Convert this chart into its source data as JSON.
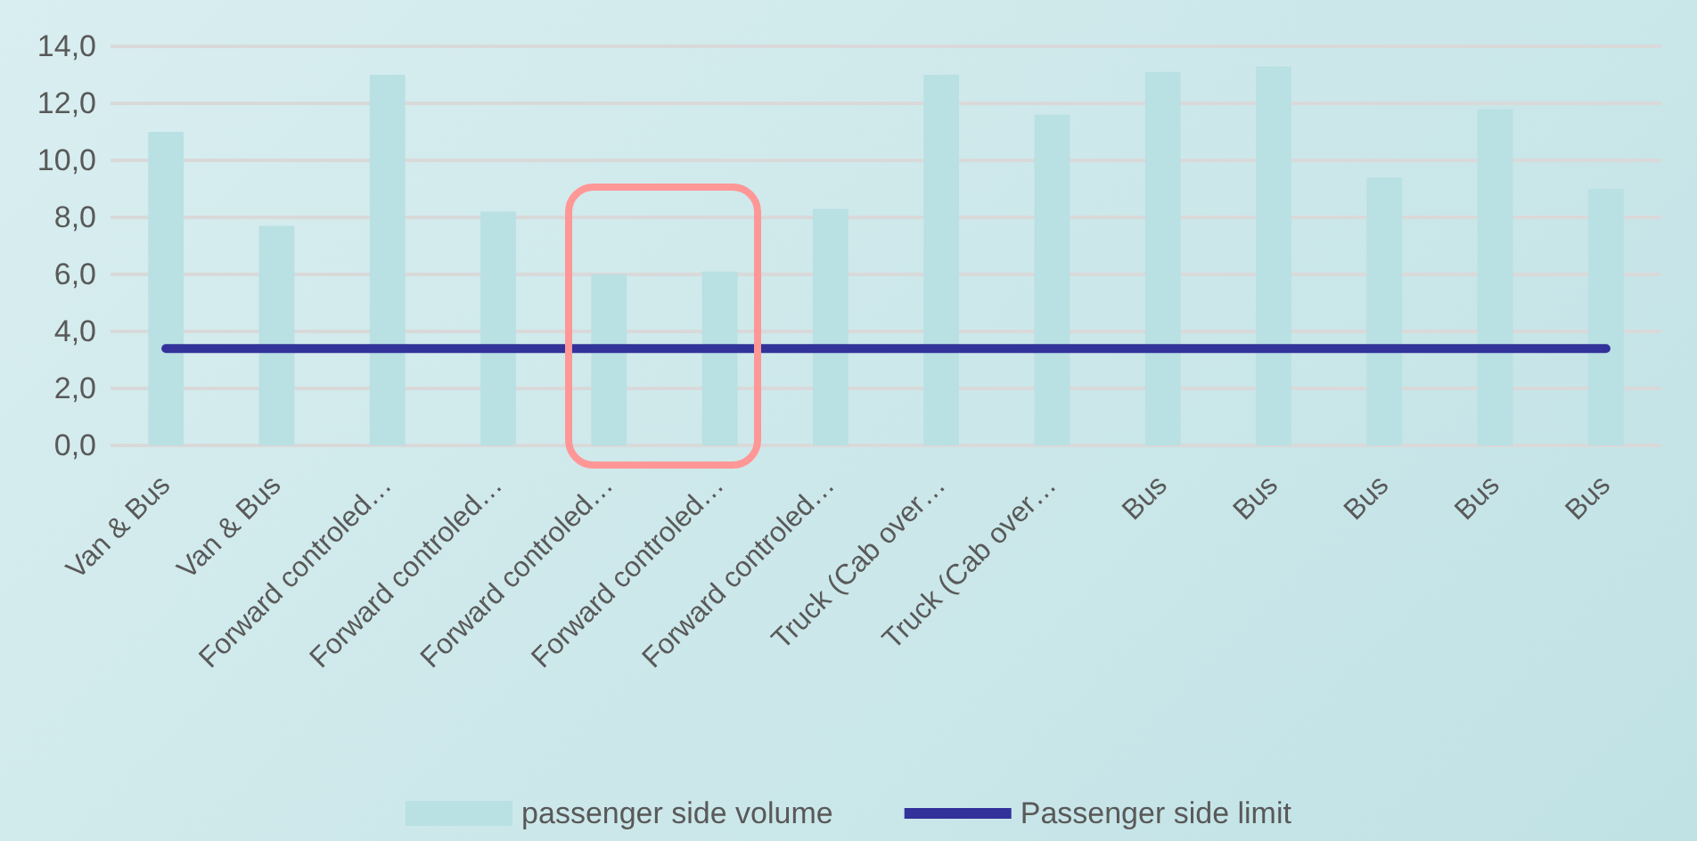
{
  "chart_data": {
    "type": "bar",
    "categories": [
      "Van & Bus",
      "Van & Bus",
      "Forward controled…",
      "Forward controled…",
      "Forward controled…",
      "Forward controled…",
      "Forward controled…",
      "Truck (Cab over…",
      "Truck (Cab over…",
      "Bus",
      "Bus",
      "Bus",
      "Bus",
      "Bus"
    ],
    "series": [
      {
        "name": "passenger side volume",
        "color": "#b9e0e3",
        "values": [
          11.0,
          7.7,
          13.0,
          8.2,
          6.0,
          6.1,
          8.3,
          13.0,
          11.6,
          13.1,
          13.3,
          9.4,
          11.8,
          9.0
        ]
      },
      {
        "name": "Passenger side limit",
        "type": "line",
        "color": "#32329a",
        "values": [
          3.4,
          3.4,
          3.4,
          3.4,
          3.4,
          3.4,
          3.4,
          3.4,
          3.4,
          3.4,
          3.4,
          3.4,
          3.4,
          3.4
        ]
      }
    ],
    "ylim": [
      0,
      14
    ],
    "yticks": [
      {
        "value": 0,
        "label": "0,0"
      },
      {
        "value": 2,
        "label": "2,0"
      },
      {
        "value": 4,
        "label": "4,0"
      },
      {
        "value": 6,
        "label": "6,0"
      },
      {
        "value": 8,
        "label": "8,0"
      },
      {
        "value": 10,
        "label": "10,0"
      },
      {
        "value": 12,
        "label": "12,0"
      },
      {
        "value": 14,
        "label": "14,0"
      }
    ],
    "grid": "y",
    "legend": "bottom",
    "marker": "none"
  }
}
